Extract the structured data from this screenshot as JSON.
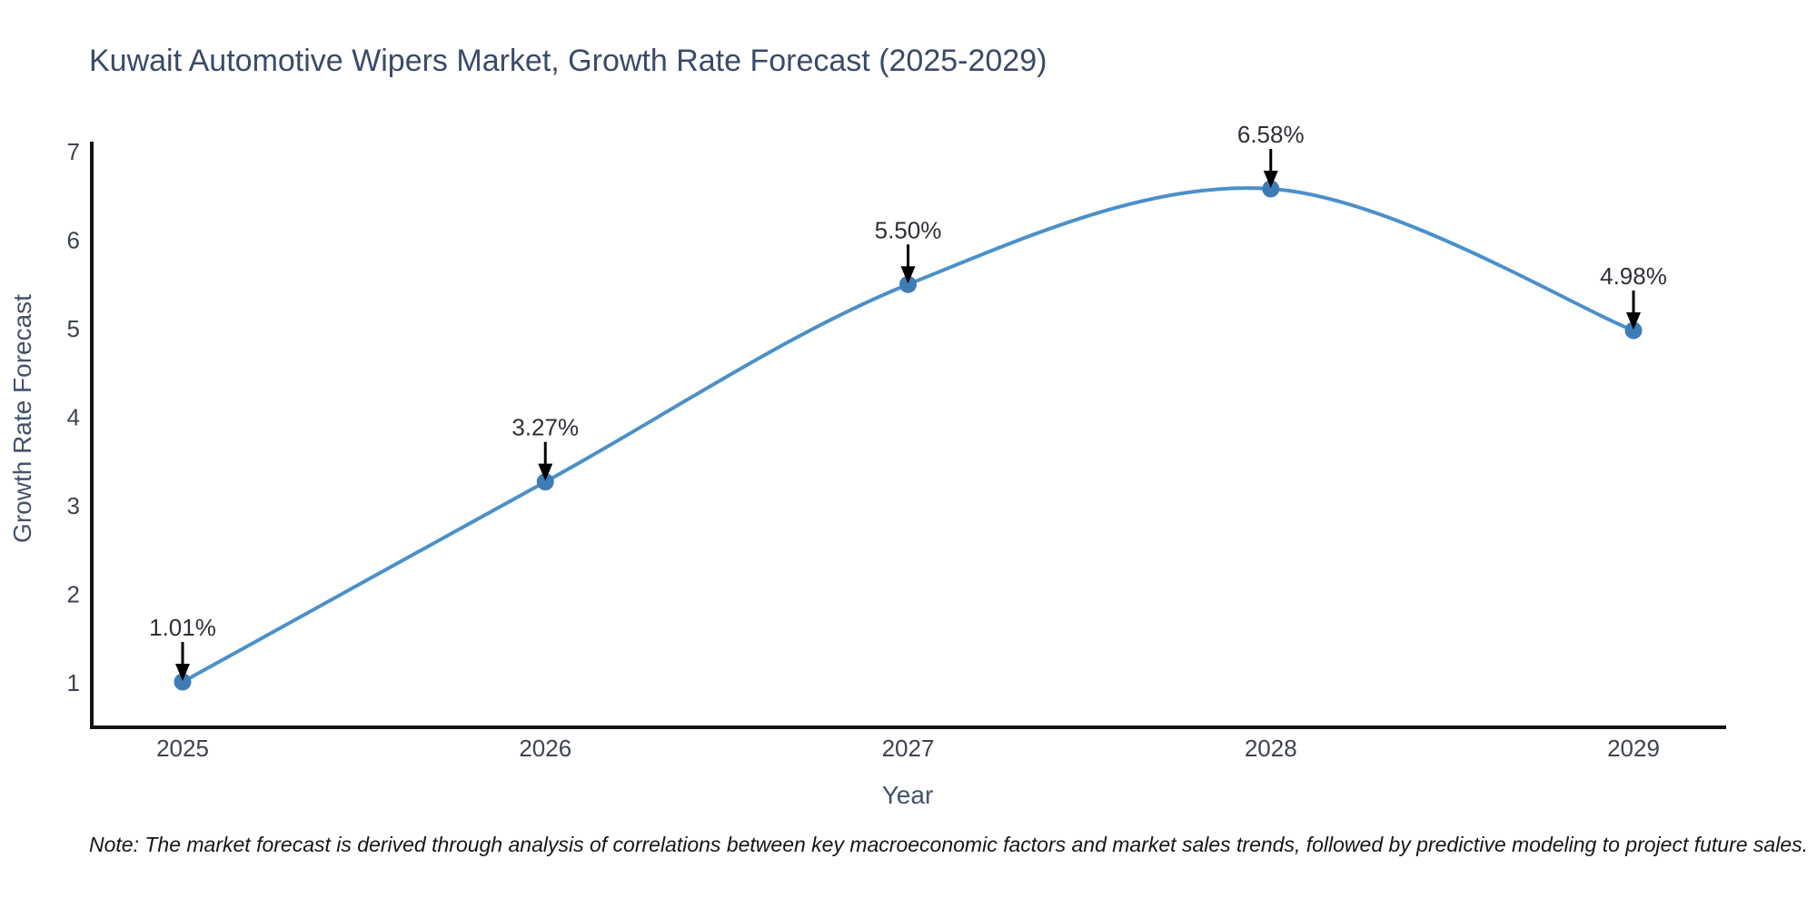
{
  "chart_data": {
    "type": "line",
    "curve": "spline",
    "title": "Kuwait Automotive Wipers Market, Growth Rate Forecast (2025-2029)",
    "xlabel": "Year",
    "ylabel": "Growth Rate Forecast",
    "categories": [
      "2025",
      "2026",
      "2027",
      "2028",
      "2029"
    ],
    "series": [
      {
        "name": "Growth Rate Forecast",
        "values": [
          1.01,
          3.27,
          5.5,
          6.58,
          4.98
        ],
        "labels": [
          "1.01%",
          "3.27%",
          "5.50%",
          "6.58%",
          "4.98%"
        ]
      }
    ],
    "yticks": [
      1,
      2,
      3,
      4,
      5,
      6,
      7
    ],
    "ylim": [
      0.5,
      7.1
    ],
    "grid": false,
    "legend": false,
    "colors": {
      "line": "#4b90c9",
      "marker": "#3e7cb6",
      "axis": "#111418",
      "tick_text": "#3d434e",
      "annotation_text": "#2c3037",
      "annotation_arrow": "#000000"
    }
  },
  "note": {
    "text": "Note: The market forecast is derived through analysis of correlations between key macroeconomic factors and market sales trends, followed by predictive modeling to project future sales."
  }
}
